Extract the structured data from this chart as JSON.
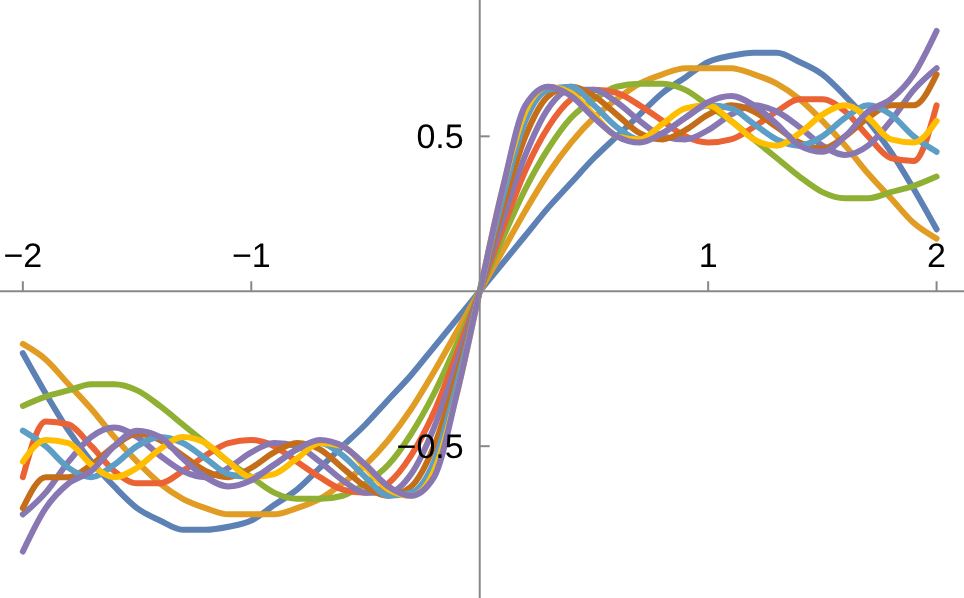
{
  "chart_data": {
    "type": "line",
    "x": [
      -2,
      -1.9,
      -1.8,
      -1.7,
      -1.6,
      -1.5,
      -1.4,
      -1.3,
      -1.2,
      -1.1,
      -1,
      -0.9,
      -0.8,
      -0.7,
      -0.6,
      -0.5,
      -0.4,
      -0.3,
      -0.2,
      -0.1,
      0,
      0.1,
      0.2,
      0.3,
      0.4,
      0.5,
      0.6,
      0.7,
      0.8,
      0.9,
      1,
      1.1,
      1.2,
      1.3,
      1.4,
      1.5,
      1.6,
      1.7,
      1.8,
      1.9,
      2
    ],
    "series": [
      {
        "color": "#5e81b5",
        "values": [
          -0.2,
          -0.33,
          -0.45,
          -0.55,
          -0.63,
          -0.7,
          -0.74,
          -0.77,
          -0.77,
          -0.76,
          -0.74,
          -0.69,
          -0.64,
          -0.57,
          -0.5,
          -0.43,
          -0.35,
          -0.27,
          -0.18,
          -0.09,
          0,
          0.09,
          0.18,
          0.27,
          0.35,
          0.43,
          0.5,
          0.57,
          0.64,
          0.69,
          0.74,
          0.76,
          0.77,
          0.77,
          0.74,
          0.7,
          0.63,
          0.55,
          0.45,
          0.33,
          0.2
        ]
      },
      {
        "color": "#e19c24",
        "values": [
          -0.17,
          -0.22,
          -0.3,
          -0.38,
          -0.47,
          -0.55,
          -0.62,
          -0.67,
          -0.7,
          -0.72,
          -0.72,
          -0.72,
          -0.7,
          -0.67,
          -0.62,
          -0.56,
          -0.48,
          -0.38,
          -0.26,
          -0.13,
          0,
          0.13,
          0.26,
          0.38,
          0.48,
          0.56,
          0.62,
          0.67,
          0.7,
          0.72,
          0.72,
          0.72,
          0.7,
          0.67,
          0.62,
          0.55,
          0.47,
          0.38,
          0.3,
          0.22,
          0.17
        ]
      },
      {
        "color": "#8fb032",
        "values": [
          -0.37,
          -0.34,
          -0.32,
          -0.3,
          -0.3,
          -0.32,
          -0.37,
          -0.43,
          -0.49,
          -0.55,
          -0.6,
          -0.65,
          -0.67,
          -0.67,
          -0.66,
          -0.62,
          -0.56,
          -0.46,
          -0.33,
          -0.17,
          0,
          0.17,
          0.33,
          0.46,
          0.56,
          0.62,
          0.66,
          0.67,
          0.67,
          0.65,
          0.6,
          0.55,
          0.49,
          0.43,
          0.37,
          0.32,
          0.3,
          0.3,
          0.32,
          0.34,
          0.37
        ]
      },
      {
        "color": "#eb6235",
        "values": [
          -0.6,
          -0.42,
          -0.43,
          -0.5,
          -0.58,
          -0.62,
          -0.62,
          -0.58,
          -0.53,
          -0.49,
          -0.48,
          -0.5,
          -0.55,
          -0.6,
          -0.64,
          -0.65,
          -0.62,
          -0.53,
          -0.39,
          -0.2,
          0,
          0.2,
          0.39,
          0.53,
          0.62,
          0.65,
          0.64,
          0.6,
          0.55,
          0.5,
          0.48,
          0.49,
          0.53,
          0.58,
          0.62,
          0.62,
          0.58,
          0.5,
          0.43,
          0.42,
          0.6
        ]
      },
      {
        "color": "#8778b3",
        "values": [
          -0.72,
          -0.65,
          -0.55,
          -0.47,
          -0.44,
          -0.47,
          -0.53,
          -0.58,
          -0.6,
          -0.57,
          -0.52,
          -0.49,
          -0.5,
          -0.55,
          -0.61,
          -0.65,
          -0.65,
          -0.59,
          -0.44,
          -0.23,
          0,
          0.23,
          0.44,
          0.59,
          0.65,
          0.65,
          0.61,
          0.55,
          0.5,
          0.49,
          0.52,
          0.57,
          0.6,
          0.58,
          0.53,
          0.47,
          0.44,
          0.47,
          0.55,
          0.65,
          0.72
        ]
      },
      {
        "color": "#c56e1a",
        "values": [
          -0.7,
          -0.6,
          -0.6,
          -0.56,
          -0.5,
          -0.46,
          -0.48,
          -0.53,
          -0.58,
          -0.6,
          -0.57,
          -0.52,
          -0.49,
          -0.51,
          -0.57,
          -0.63,
          -0.66,
          -0.63,
          -0.5,
          -0.27,
          0,
          0.27,
          0.5,
          0.63,
          0.66,
          0.63,
          0.57,
          0.51,
          0.49,
          0.52,
          0.57,
          0.6,
          0.58,
          0.53,
          0.48,
          0.46,
          0.5,
          0.56,
          0.6,
          0.6,
          0.7
        ]
      },
      {
        "color": "#5d9ec7",
        "values": [
          -0.45,
          -0.5,
          -0.57,
          -0.6,
          -0.56,
          -0.5,
          -0.47,
          -0.49,
          -0.54,
          -0.59,
          -0.6,
          -0.56,
          -0.51,
          -0.49,
          -0.53,
          -0.6,
          -0.66,
          -0.65,
          -0.55,
          -0.3,
          0,
          0.3,
          0.55,
          0.65,
          0.66,
          0.6,
          0.53,
          0.49,
          0.51,
          0.56,
          0.6,
          0.59,
          0.54,
          0.49,
          0.47,
          0.5,
          0.56,
          0.6,
          0.57,
          0.5,
          0.45
        ]
      },
      {
        "color": "#ffbf00",
        "values": [
          -0.55,
          -0.48,
          -0.49,
          -0.56,
          -0.6,
          -0.57,
          -0.51,
          -0.47,
          -0.49,
          -0.55,
          -0.6,
          -0.59,
          -0.54,
          -0.49,
          -0.5,
          -0.57,
          -0.64,
          -0.66,
          -0.58,
          -0.33,
          0,
          0.33,
          0.58,
          0.66,
          0.64,
          0.57,
          0.5,
          0.49,
          0.54,
          0.59,
          0.6,
          0.55,
          0.49,
          0.47,
          0.51,
          0.57,
          0.6,
          0.56,
          0.49,
          0.48,
          0.55
        ]
      },
      {
        "color": "#8877b3",
        "values": [
          -0.84,
          -0.7,
          -0.62,
          -0.58,
          -0.5,
          -0.45,
          -0.47,
          -0.54,
          -0.6,
          -0.63,
          -0.61,
          -0.56,
          -0.51,
          -0.48,
          -0.5,
          -0.56,
          -0.63,
          -0.66,
          -0.6,
          -0.33,
          0,
          0.33,
          0.6,
          0.66,
          0.63,
          0.56,
          0.5,
          0.48,
          0.51,
          0.56,
          0.61,
          0.63,
          0.6,
          0.54,
          0.47,
          0.45,
          0.5,
          0.58,
          0.62,
          0.7,
          0.84
        ]
      }
    ],
    "xlim": [
      -2.1,
      2.12
    ],
    "ylim": [
      -0.99,
      0.94
    ],
    "xticks": [
      -2,
      -1,
      1,
      2
    ],
    "yticks": [
      -0.5,
      0.5
    ]
  }
}
